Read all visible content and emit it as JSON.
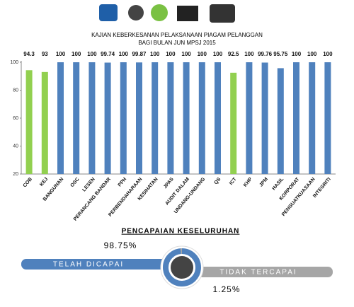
{
  "chart_data": {
    "type": "bar",
    "title": "KAJIAN KEBERKESANAN PELAKSANAAN PIAGAM PELANGGAN",
    "subtitle": "BAGI BULAN JUN MPSJ 2015",
    "categories": [
      "COB",
      "KEJ",
      "BANGUNAN",
      "OSC",
      "LESEN",
      "PERANCANG BANDAR",
      "PPH",
      "PERBENDAHARAAN",
      "KESIHATAN",
      "JPAS",
      "AUDIT DALAM",
      "UNDANG-UNDANG",
      "QS",
      "ICT",
      "KHP",
      "JPM",
      "HASIL",
      "KORPORAT",
      "PENGUATKUASAAN",
      "INTEGRITI"
    ],
    "values": [
      94.3,
      93,
      100,
      100,
      100,
      99.74,
      100,
      99.87,
      100,
      100,
      100,
      100,
      100,
      92.5,
      100,
      99.76,
      95.75,
      100,
      100,
      100
    ],
    "colors": [
      "#92d050",
      "#92d050",
      "#4f81bd",
      "#4f81bd",
      "#4f81bd",
      "#4f81bd",
      "#4f81bd",
      "#4f81bd",
      "#4f81bd",
      "#4f81bd",
      "#4f81bd",
      "#4f81bd",
      "#4f81bd",
      "#92d050",
      "#4f81bd",
      "#4f81bd",
      "#4f81bd",
      "#4f81bd",
      "#4f81bd",
      "#4f81bd"
    ],
    "ylim": [
      20,
      100
    ],
    "yticks": [
      20,
      40,
      60,
      80,
      100
    ],
    "grid": false
  },
  "summary": {
    "title": "PENCAPAIAN KESELURUHAN",
    "achieved": {
      "label": "TELAH DICAPAI",
      "value": 98.75,
      "value_label": "98.75%",
      "color": "#4f81bd"
    },
    "not_achieved": {
      "label": "TIDAK TERCAPAI",
      "value": 1.25,
      "value_label": "1.25%",
      "color": "#a6a6a6"
    }
  }
}
